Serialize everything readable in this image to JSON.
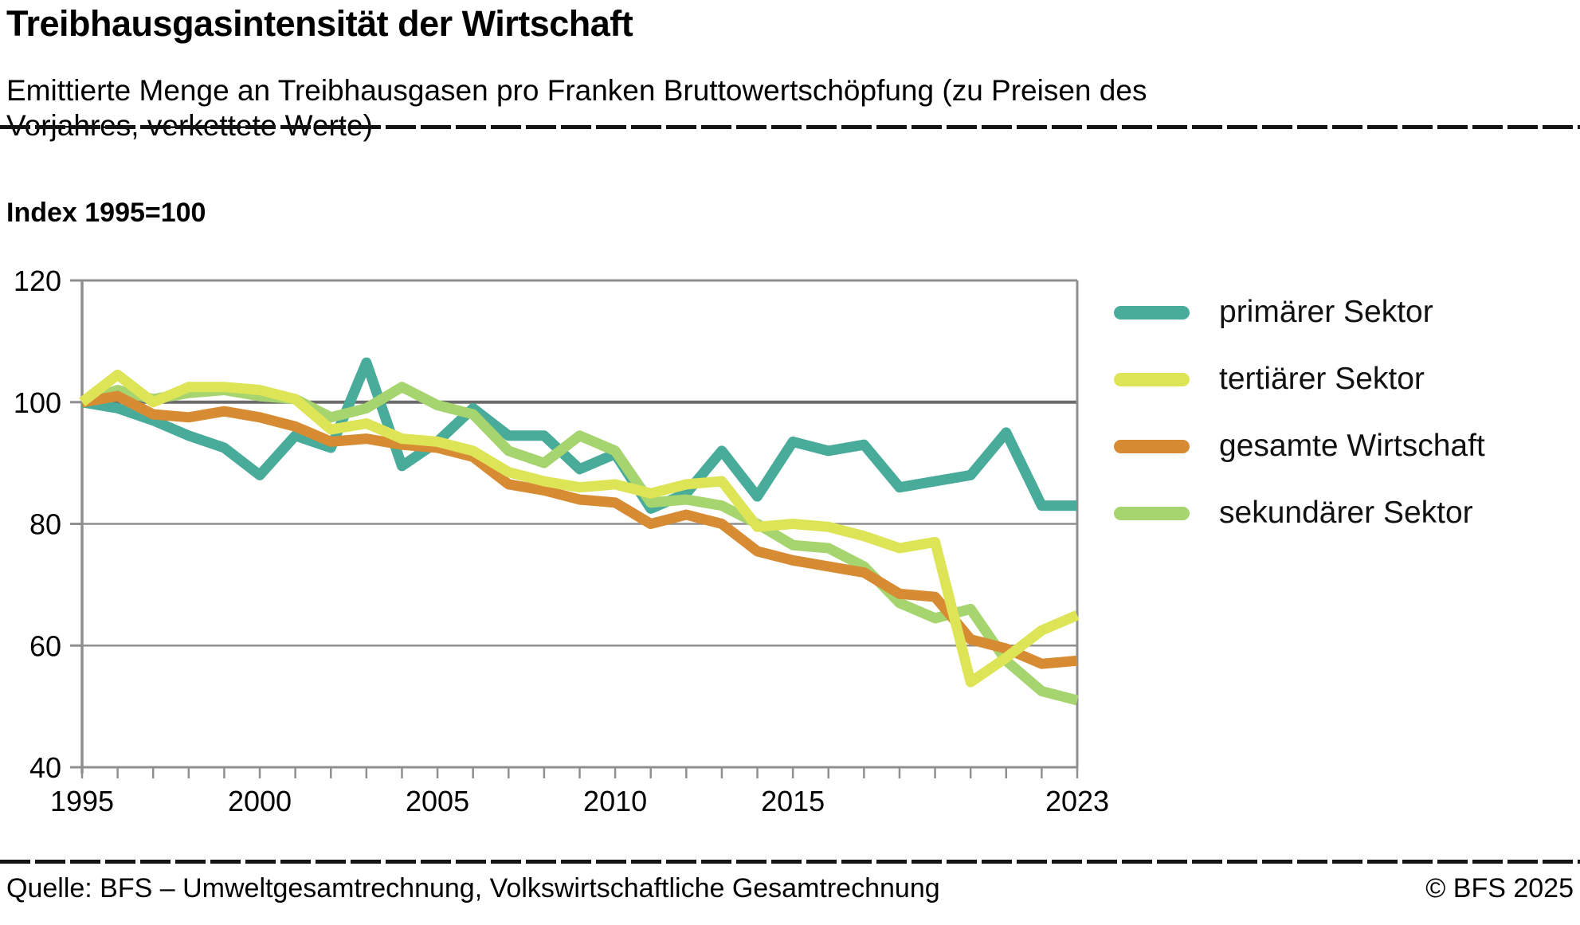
{
  "header": {
    "title": "Treibhausgasintensität der Wirtschaft",
    "subtitle": "Emittierte Menge an Treibhausgasen pro Franken Bruttowertschöpfung (zu Preisen des Vorjahres, verkettete Werte)"
  },
  "chart": {
    "index_label": "Index 1995=100"
  },
  "chart_data": {
    "type": "line",
    "title": "Treibhausgasintensität der Wirtschaft",
    "xlabel": "",
    "ylabel": "Index 1995=100",
    "x": [
      1995,
      1996,
      1997,
      1998,
      1999,
      2000,
      2001,
      2002,
      2003,
      2004,
      2005,
      2006,
      2007,
      2008,
      2009,
      2010,
      2011,
      2012,
      2013,
      2014,
      2015,
      2016,
      2017,
      2018,
      2019,
      2020,
      2021,
      2022,
      2023
    ],
    "x_tick_labels": [
      1995,
      2000,
      2005,
      2010,
      2015,
      2023
    ],
    "ylim": [
      40,
      120
    ],
    "y_ticks": [
      40,
      60,
      80,
      100,
      120
    ],
    "grid": true,
    "legend_position": "right",
    "series": [
      {
        "name": "primärer Sektor",
        "color": "#49ab9a",
        "values": [
          100,
          99,
          97,
          94.5,
          92.5,
          88,
          94.5,
          92.5,
          106.5,
          89.5,
          93.5,
          99,
          94.5,
          94.5,
          89,
          91.5,
          82.5,
          85,
          92,
          84.5,
          93.5,
          92,
          93,
          86,
          87,
          88,
          95,
          83,
          83
        ]
      },
      {
        "name": "tertiärer Sektor",
        "color": "#dde557",
        "values": [
          100,
          104.5,
          100,
          102.5,
          102.5,
          102,
          100.5,
          95.5,
          96.5,
          94,
          93.5,
          92,
          88.5,
          87,
          86,
          86.5,
          85,
          86.5,
          87,
          79.5,
          80,
          79.5,
          78,
          76,
          77,
          54,
          58,
          62.5,
          65
        ]
      },
      {
        "name": "gesamte Wirtschaft",
        "color": "#d78b32",
        "values": [
          100,
          101,
          98,
          97.5,
          98.5,
          97.5,
          96,
          93.5,
          94,
          93,
          92.5,
          91,
          86.5,
          85.5,
          84,
          83.5,
          80,
          81.5,
          80,
          75.5,
          74,
          73,
          72,
          68.5,
          68,
          61,
          59.5,
          57,
          57.5
        ]
      },
      {
        "name": "sekundärer Sektor",
        "color": "#a6d46f",
        "values": [
          100,
          102,
          100.5,
          101.5,
          102,
          101,
          100.5,
          97.5,
          99,
          102.5,
          99.5,
          98,
          92,
          90,
          94.5,
          92,
          83.5,
          84,
          83,
          80,
          76.5,
          76,
          73,
          67,
          64.5,
          66,
          57.5,
          52.5,
          51
        ]
      }
    ],
    "styles": {
      "line_width": 13,
      "grid_color": "#8f8f8f",
      "baseline_color": "#6b6b6b",
      "axis_text_color": "#000000"
    }
  },
  "footer": {
    "source": "Quelle: BFS – Umweltgesamtrechnung, Volkswirtschaftliche Gesamtrechnung",
    "copyright": "© BFS 2025"
  }
}
